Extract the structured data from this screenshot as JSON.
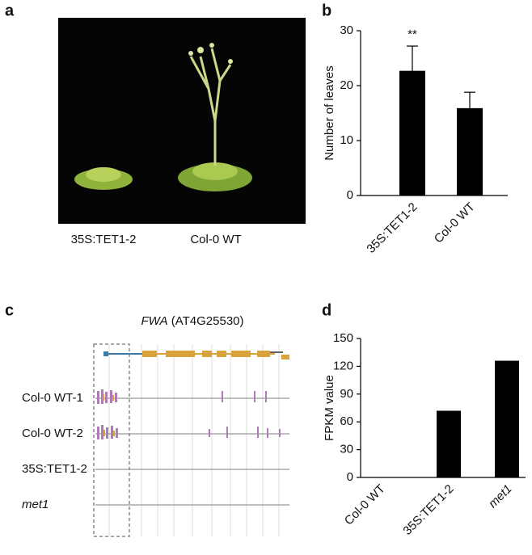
{
  "panel_labels": [
    "a",
    "b",
    "c",
    "d"
  ],
  "photo": {
    "labels": [
      "35S:TET1-2",
      "Col-0 WT"
    ]
  },
  "track": {
    "gene": "FWA",
    "gene_id": "(AT4G25530)",
    "rows": [
      "Col-0 WT-1",
      "Col-0 WT-2",
      "35S:TET1-2",
      "met1"
    ]
  },
  "chart_data": [
    {
      "type": "bar",
      "y_label": "Number of leaves",
      "categories": [
        "35S:TET1-2",
        "Col-0 WT"
      ],
      "values": [
        22.7,
        15.9
      ],
      "errors": [
        4.5,
        2.9
      ],
      "significance": [
        "**",
        null
      ],
      "color": "#000000",
      "ylim": [
        0,
        30
      ],
      "yticks": [
        0,
        10,
        20,
        30
      ]
    },
    {
      "type": "bar",
      "y_label": "FPKM value",
      "categories": [
        "Col-0 WT",
        "35S:TET1-2",
        "met1"
      ],
      "values": [
        0,
        72,
        126
      ],
      "color": "#000000",
      "ylim": [
        0,
        150
      ],
      "yticks": [
        0,
        30,
        60,
        90,
        120,
        150
      ]
    }
  ]
}
